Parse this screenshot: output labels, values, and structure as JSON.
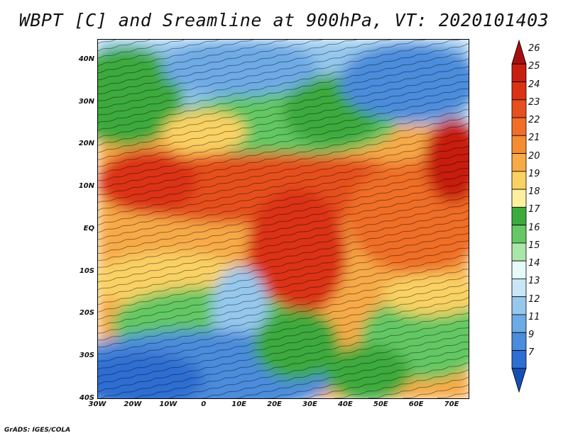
{
  "title": "WBPT [C] and Sreamline at 900hPa, VT: 2020101403",
  "map": {
    "lat_ticks": [
      "40N",
      "30N",
      "20N",
      "10N",
      "EQ",
      "10S",
      "20S",
      "30S",
      "40S"
    ],
    "lon_ticks": [
      "30W",
      "20W",
      "10W",
      "0",
      "10E",
      "20E",
      "30E",
      "40E",
      "50E",
      "60E",
      "70E"
    ],
    "lat_range": [
      -40,
      45
    ],
    "lon_range": [
      -30,
      75
    ]
  },
  "colorbar": {
    "labels": [
      "26",
      "25",
      "24",
      "23",
      "22",
      "21",
      "20",
      "19",
      "18",
      "17",
      "16",
      "15",
      "14",
      "13",
      "12",
      "11",
      "9",
      "7"
    ],
    "colors": [
      "#a50f0f",
      "#c81e0f",
      "#dc3214",
      "#e6501e",
      "#f06e28",
      "#f58c32",
      "#f7aa46",
      "#fad264",
      "#fff0a0",
      "#3caa3c",
      "#64c864",
      "#aae6aa",
      "#e6fafa",
      "#c8e6f5",
      "#96c8ee",
      "#6eaae6",
      "#4b8cdc",
      "#2d6ed2",
      "#1450b4"
    ]
  },
  "credit": "GrADS: IGES/COLA"
}
